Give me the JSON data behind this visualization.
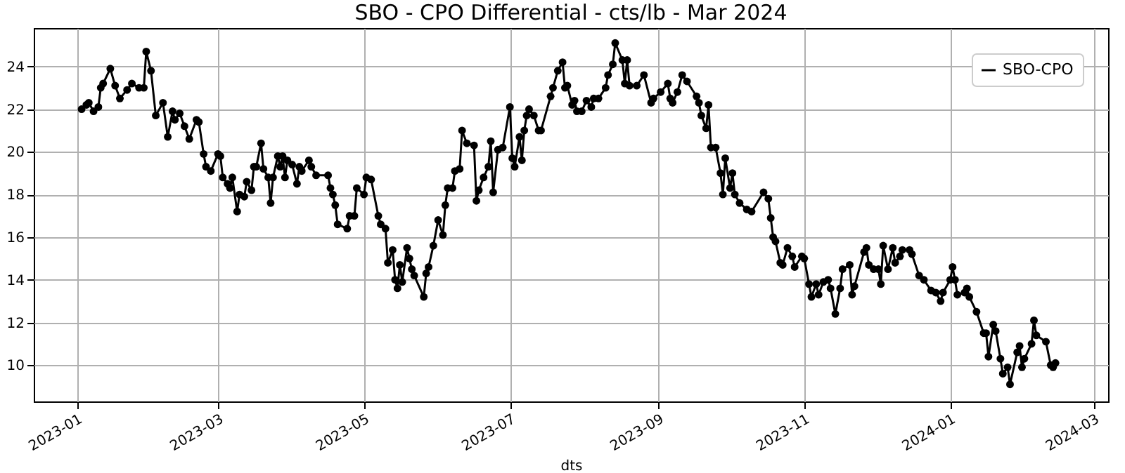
{
  "chart_data": {
    "type": "line",
    "title": "SBO - CPO Differential - cts/lb - Mar 2024",
    "xlabel": "dts",
    "x": [
      "2023-01-03",
      "2023-01-05",
      "2023-01-06",
      "2023-01-08",
      "2023-01-10",
      "2023-01-11",
      "2023-01-12",
      "2023-01-15",
      "2023-01-17",
      "2023-01-19",
      "2023-01-22",
      "2023-01-24",
      "2023-01-27",
      "2023-01-29",
      "2023-01-30",
      "2023-02-01",
      "2023-02-03",
      "2023-02-06",
      "2023-02-08",
      "2023-02-10",
      "2023-02-11",
      "2023-02-13",
      "2023-02-15",
      "2023-02-17",
      "2023-02-20",
      "2023-02-21",
      "2023-02-23",
      "2023-02-24",
      "2023-02-26",
      "2023-03-01",
      "2023-03-02",
      "2023-03-03",
      "2023-03-05",
      "2023-03-06",
      "2023-03-07",
      "2023-03-09",
      "2023-03-10",
      "2023-03-12",
      "2023-03-13",
      "2023-03-15",
      "2023-03-16",
      "2023-03-17",
      "2023-03-19",
      "2023-03-20",
      "2023-03-22",
      "2023-03-23",
      "2023-03-24",
      "2023-03-26",
      "2023-03-27",
      "2023-03-28",
      "2023-03-29",
      "2023-03-30",
      "2023-04-01",
      "2023-04-03",
      "2023-04-04",
      "2023-04-05",
      "2023-04-08",
      "2023-04-09",
      "2023-04-11",
      "2023-04-16",
      "2023-04-17",
      "2023-04-18",
      "2023-04-19",
      "2023-04-20",
      "2023-04-24",
      "2023-04-25",
      "2023-04-27",
      "2023-04-28",
      "2023-05-01",
      "2023-05-02",
      "2023-05-04",
      "2023-05-07",
      "2023-05-08",
      "2023-05-10",
      "2023-05-11",
      "2023-05-13",
      "2023-05-14",
      "2023-05-15",
      "2023-05-16",
      "2023-05-17",
      "2023-05-19",
      "2023-05-20",
      "2023-05-21",
      "2023-05-22",
      "2023-05-26",
      "2023-05-27",
      "2023-05-28",
      "2023-05-30",
      "2023-06-01",
      "2023-06-03",
      "2023-06-04",
      "2023-06-05",
      "2023-06-07",
      "2023-06-08",
      "2023-06-10",
      "2023-06-11",
      "2023-06-13",
      "2023-06-16",
      "2023-06-17",
      "2023-06-18",
      "2023-06-20",
      "2023-06-22",
      "2023-06-23",
      "2023-06-24",
      "2023-06-26",
      "2023-06-28",
      "2023-07-01",
      "2023-07-02",
      "2023-07-03",
      "2023-07-05",
      "2023-07-06",
      "2023-07-07",
      "2023-07-08",
      "2023-07-09",
      "2023-07-11",
      "2023-07-13",
      "2023-07-14",
      "2023-07-18",
      "2023-07-19",
      "2023-07-21",
      "2023-07-23",
      "2023-07-24",
      "2023-07-25",
      "2023-07-27",
      "2023-07-28",
      "2023-07-29",
      "2023-07-31",
      "2023-08-02",
      "2023-08-04",
      "2023-08-05",
      "2023-08-07",
      "2023-08-10",
      "2023-08-11",
      "2023-08-13",
      "2023-08-14",
      "2023-08-17",
      "2023-08-18",
      "2023-08-19",
      "2023-08-20",
      "2023-08-23",
      "2023-08-26",
      "2023-08-29",
      "2023-08-30",
      "2023-09-02",
      "2023-09-05",
      "2023-09-06",
      "2023-09-07",
      "2023-09-09",
      "2023-09-11",
      "2023-09-13",
      "2023-09-17",
      "2023-09-18",
      "2023-09-19",
      "2023-09-21",
      "2023-09-22",
      "2023-09-23",
      "2023-09-25",
      "2023-09-27",
      "2023-09-28",
      "2023-09-29",
      "2023-10-01",
      "2023-10-02",
      "2023-10-03",
      "2023-10-05",
      "2023-10-08",
      "2023-10-10",
      "2023-10-15",
      "2023-10-17",
      "2023-10-18",
      "2023-10-19",
      "2023-10-20",
      "2023-10-22",
      "2023-10-23",
      "2023-10-25",
      "2023-10-27",
      "2023-10-28",
      "2023-10-31",
      "2023-11-01",
      "2023-11-03",
      "2023-11-04",
      "2023-11-06",
      "2023-11-07",
      "2023-11-09",
      "2023-11-11",
      "2023-11-12",
      "2023-11-14",
      "2023-11-16",
      "2023-11-17",
      "2023-11-20",
      "2023-11-21",
      "2023-11-22",
      "2023-11-26",
      "2023-11-27",
      "2023-11-28",
      "2023-11-30",
      "2023-12-02",
      "2023-12-03",
      "2023-12-04",
      "2023-12-06",
      "2023-12-08",
      "2023-12-09",
      "2023-12-11",
      "2023-12-12",
      "2023-12-15",
      "2023-12-16",
      "2023-12-19",
      "2023-12-21",
      "2023-12-24",
      "2023-12-26",
      "2023-12-28",
      "2023-12-29",
      "2024-01-01",
      "2024-01-02",
      "2024-01-03",
      "2024-01-04",
      "2024-01-07",
      "2024-01-08",
      "2024-01-09",
      "2024-01-12",
      "2024-01-15",
      "2024-01-16",
      "2024-01-17",
      "2024-01-19",
      "2024-01-20",
      "2024-01-22",
      "2024-01-23",
      "2024-01-25",
      "2024-01-26",
      "2024-01-29",
      "2024-01-30",
      "2024-01-31",
      "2024-02-01",
      "2024-02-04",
      "2024-02-05",
      "2024-02-06",
      "2024-02-10",
      "2024-02-12",
      "2024-02-13",
      "2024-02-14"
    ],
    "series": [
      {
        "name": "SBO-CPO",
        "color": "#000000",
        "values": [
          22.0,
          22.2,
          22.3,
          21.9,
          22.1,
          23.0,
          23.2,
          23.9,
          23.1,
          22.5,
          22.9,
          23.2,
          23.0,
          23.0,
          24.7,
          23.8,
          21.7,
          22.3,
          20.7,
          21.9,
          21.5,
          21.8,
          21.2,
          20.6,
          21.5,
          21.4,
          19.9,
          19.3,
          19.1,
          19.9,
          19.8,
          18.8,
          18.5,
          18.3,
          18.8,
          17.2,
          18.0,
          17.9,
          18.6,
          18.2,
          19.3,
          19.3,
          20.4,
          19.2,
          18.8,
          17.6,
          18.8,
          19.8,
          19.3,
          19.8,
          18.8,
          19.6,
          19.4,
          18.5,
          19.3,
          19.1,
          19.6,
          19.3,
          18.9,
          18.9,
          18.3,
          18.0,
          17.5,
          16.6,
          16.4,
          17.0,
          17.0,
          18.3,
          18.0,
          18.8,
          18.7,
          17.0,
          16.6,
          16.4,
          14.8,
          15.4,
          14.0,
          13.6,
          14.7,
          13.9,
          15.5,
          15.0,
          14.5,
          14.2,
          13.2,
          14.3,
          14.6,
          15.6,
          16.8,
          16.1,
          17.5,
          18.3,
          18.3,
          19.1,
          19.2,
          21.0,
          20.4,
          20.3,
          17.7,
          18.2,
          18.8,
          19.3,
          20.5,
          18.1,
          20.1,
          20.2,
          22.1,
          19.7,
          19.3,
          20.7,
          19.6,
          21.0,
          21.7,
          22.0,
          21.7,
          21.0,
          21.0,
          22.6,
          23.0,
          23.8,
          24.2,
          23.0,
          23.1,
          22.2,
          22.4,
          21.9,
          21.9,
          22.4,
          22.1,
          22.5,
          22.5,
          23.0,
          23.6,
          24.1,
          25.1,
          24.3,
          23.2,
          24.3,
          23.1,
          23.1,
          23.6,
          22.3,
          22.5,
          22.8,
          23.2,
          22.5,
          22.3,
          22.8,
          23.6,
          23.3,
          22.6,
          22.3,
          21.7,
          21.1,
          22.2,
          20.2,
          20.2,
          19.0,
          18.0,
          19.7,
          18.3,
          19.0,
          18.0,
          17.6,
          17.3,
          17.2,
          18.1,
          17.8,
          16.9,
          16.0,
          15.8,
          14.8,
          14.7,
          15.5,
          15.1,
          14.6,
          15.1,
          15.0,
          13.8,
          13.2,
          13.8,
          13.3,
          13.9,
          14.0,
          13.6,
          12.4,
          13.6,
          14.5,
          14.7,
          13.3,
          13.7,
          15.3,
          15.5,
          14.7,
          14.5,
          14.5,
          13.8,
          15.6,
          14.5,
          15.5,
          14.8,
          15.1,
          15.4,
          15.4,
          15.2,
          14.2,
          14.0,
          13.5,
          13.4,
          13.0,
          13.4,
          14.0,
          14.6,
          14.0,
          13.3,
          13.4,
          13.6,
          13.2,
          12.5,
          11.5,
          11.5,
          10.4,
          11.9,
          11.6,
          10.3,
          9.6,
          9.9,
          9.1,
          10.6,
          10.9,
          9.9,
          10.3,
          11.0,
          12.1,
          11.4,
          11.1,
          10.0,
          9.9,
          10.1
        ]
      }
    ],
    "xlim": [
      "2022-12-14",
      "2024-03-07"
    ],
    "xticks": [
      "2023-01",
      "2023-03",
      "2023-05",
      "2023-07",
      "2023-09",
      "2023-11",
      "2024-01",
      "2024-03"
    ],
    "ylim": [
      8.3,
      25.8
    ],
    "yticks": [
      10,
      12,
      14,
      16,
      18,
      20,
      22,
      24
    ],
    "grid": true,
    "legend": "top right",
    "marker": "circle",
    "line_style": "solid"
  }
}
